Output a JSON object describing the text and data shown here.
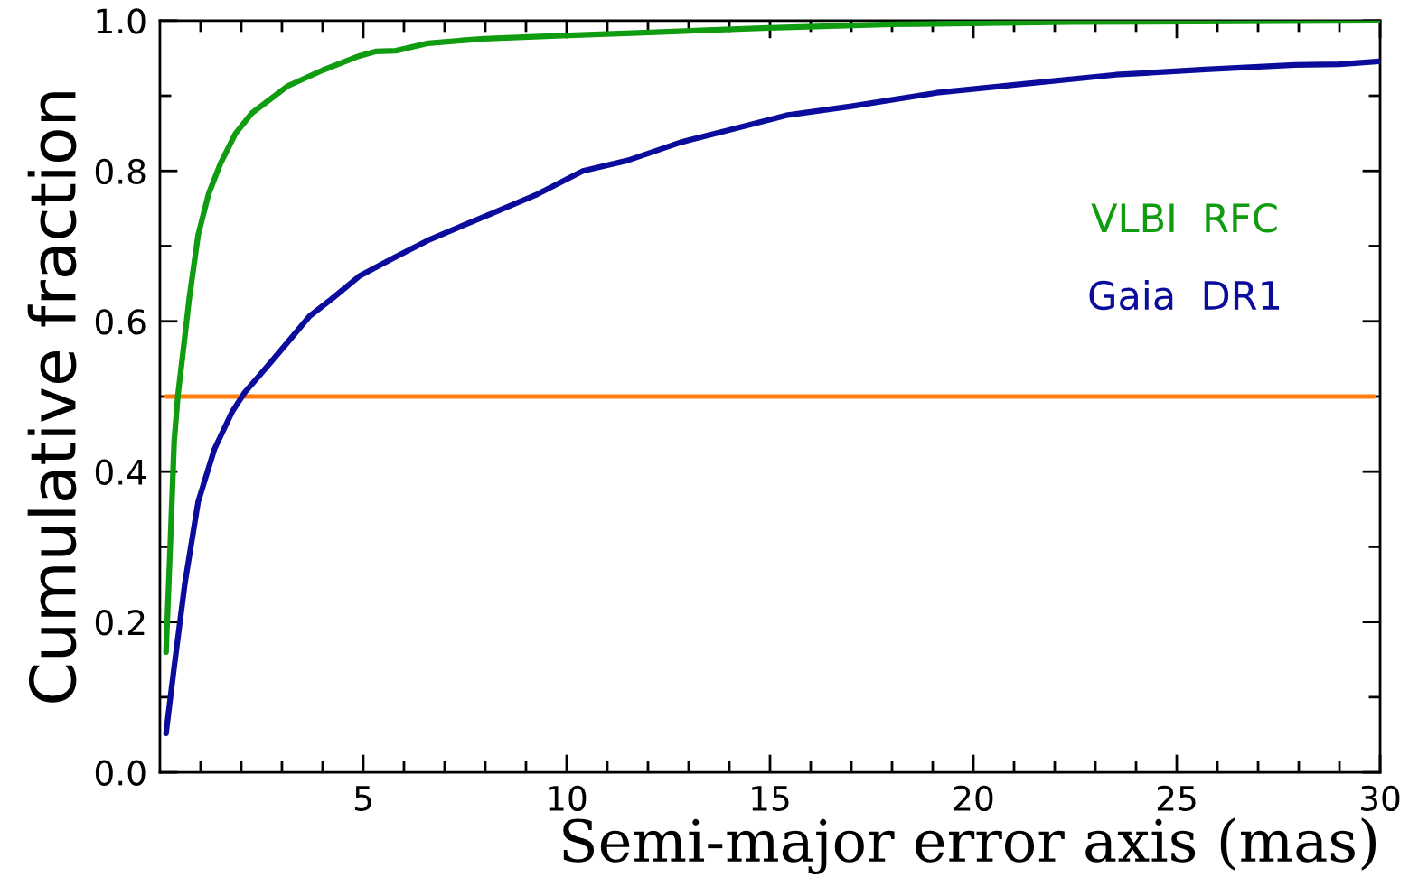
{
  "chart_data": {
    "type": "line",
    "xlabel": "Semi-major error axis (mas)",
    "ylabel": "Cumulative fraction",
    "series": [
      {
        "name": "VLBI  RFC",
        "color": "#109c10",
        "x": [
          0.15,
          0.26,
          0.35,
          0.44,
          0.57,
          0.72,
          0.94,
          1.2,
          1.49,
          1.86,
          2.26,
          3.14,
          4.0,
          4.9,
          5.3,
          5.8,
          6.6,
          7.96,
          9.9,
          11.9,
          14.8,
          18,
          22.4,
          30
        ],
        "values": [
          0.16,
          0.31,
          0.44,
          0.5,
          0.56,
          0.63,
          0.715,
          0.77,
          0.81,
          0.85,
          0.877,
          0.913,
          0.934,
          0.953,
          0.959,
          0.96,
          0.97,
          0.976,
          0.98,
          0.984,
          0.99,
          0.995,
          0.998,
          1.0
        ]
      },
      {
        "name": "Gaia  DR1",
        "color": "#0c0c9c",
        "x": [
          0.15,
          0.35,
          0.61,
          0.94,
          1.34,
          1.78,
          2.08,
          2.48,
          3.03,
          3.68,
          4.23,
          4.9,
          5.77,
          6.64,
          7.96,
          9.28,
          10.4,
          11.5,
          12.8,
          14.1,
          15.4,
          17.0,
          19.1,
          21.3,
          23.5,
          25.7,
          27.9,
          29.0,
          30
        ],
        "values": [
          0.052,
          0.14,
          0.25,
          0.36,
          0.43,
          0.48,
          0.505,
          0.53,
          0.565,
          0.607,
          0.63,
          0.66,
          0.685,
          0.709,
          0.739,
          0.769,
          0.8,
          0.814,
          0.838,
          0.856,
          0.874,
          0.886,
          0.904,
          0.916,
          0.928,
          0.935,
          0.941,
          0.942,
          0.946
        ]
      }
    ],
    "ref_lines": [
      {
        "axis": "y",
        "value": 0.5,
        "color": "#ff7f0e"
      }
    ],
    "xlim": [
      0,
      30
    ],
    "ylim": [
      0,
      1.0
    ],
    "xticks": [
      {
        "value": 1,
        "label": null
      },
      {
        "value": 2,
        "label": null
      },
      {
        "value": 3,
        "label": null
      },
      {
        "value": 4,
        "label": null
      },
      5,
      {
        "value": 6,
        "label": null
      },
      {
        "value": 7,
        "label": null
      },
      {
        "value": 8,
        "label": null
      },
      {
        "value": 9,
        "label": null
      },
      10,
      {
        "value": 11,
        "label": null
      },
      {
        "value": 12,
        "label": null
      },
      {
        "value": 13,
        "label": null
      },
      {
        "value": 14,
        "label": null
      },
      15,
      {
        "value": 16,
        "label": null
      },
      {
        "value": 17,
        "label": null
      },
      {
        "value": 18,
        "label": null
      },
      {
        "value": 19,
        "label": null
      },
      20,
      {
        "value": 21,
        "label": null
      },
      {
        "value": 22,
        "label": null
      },
      {
        "value": 23,
        "label": null
      },
      {
        "value": 24,
        "label": null
      },
      25,
      {
        "value": 26,
        "label": null
      },
      {
        "value": 27,
        "label": null
      },
      {
        "value": 28,
        "label": null
      },
      {
        "value": 29,
        "label": null
      },
      30
    ],
    "yticks": [
      {
        "value": 0,
        "label": "0.0"
      },
      {
        "value": 0.1,
        "label": null
      },
      {
        "value": 0.2,
        "label": "0.2"
      },
      {
        "value": 0.3,
        "label": null
      },
      {
        "value": 0.4,
        "label": "0.4"
      },
      {
        "value": 0.5,
        "label": null
      },
      {
        "value": 0.6,
        "label": "0.6"
      },
      {
        "value": 0.7,
        "label": null
      },
      {
        "value": 0.8,
        "label": "0.8"
      },
      {
        "value": 0.9,
        "label": null
      },
      {
        "value": 1.0,
        "label": "1.0"
      }
    ],
    "grid": false,
    "legend": false,
    "marker": "none",
    "line_style": "solid"
  }
}
